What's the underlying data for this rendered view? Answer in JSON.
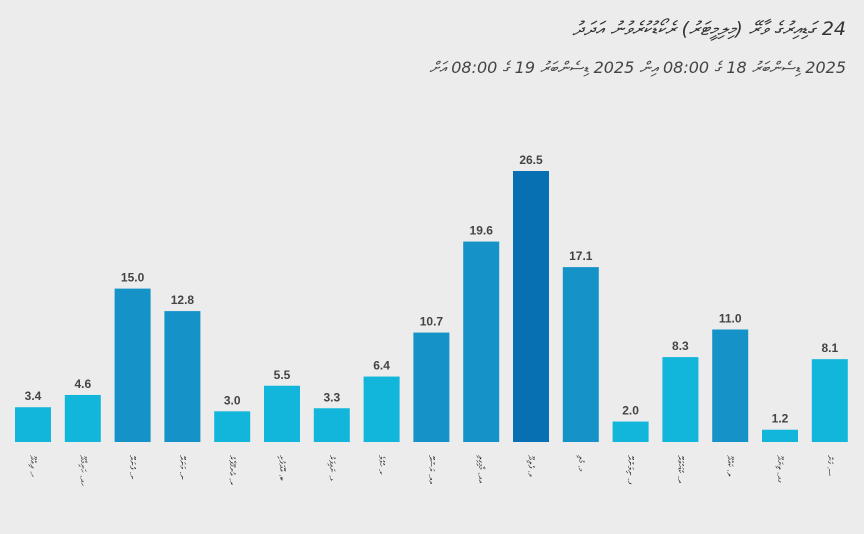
{
  "chart_data": {
    "type": "bar",
    "title": "24 ގަޑިއިރުގެ ވާރޭ (މިލިމީޓަރު) ރެކޯޑުކުރެވުނު އަދަދު",
    "subtitle": "2025 ޑިސެންބަރު 18 ގެ 08:00 އިން 2025 ޑިސެންބަރު 19 ގެ 08:00 އަށް",
    "categories": [
      "ހ. ދިއްދޫ",
      "ހދ. ހަނިމާދޫ",
      "ށ. ފުނަދޫ",
      "ނ. މަނަދޫ",
      "ރ. އުނގޫފާރު",
      "ބ. އޭދަފުށި",
      "ޅ. ނައިފަރު",
      "ކ. ހުޅުލެ",
      "އއ. ރަސްދޫ",
      "އދ. މާމިގިލި",
      "ވ. ފެލިދޫ",
      "މ. މުލި",
      "ފ. ނިލަންދޫ",
      "ދ. ކުޑަހުވަދޫ",
      "ލ. ކައްދޫ",
      "ގދ. ތިނަދޫ",
      "ސ. ގަން"
    ],
    "values": [
      3.4,
      4.6,
      15.0,
      12.8,
      3.0,
      5.5,
      3.3,
      6.4,
      10.7,
      19.6,
      26.5,
      17.1,
      2.0,
      8.3,
      11.0,
      1.2,
      8.1
    ],
    "value_labels": [
      "3.4",
      "4.6",
      "15.0",
      "12.8",
      "3.0",
      "5.5",
      "3.3",
      "6.4",
      "10.7",
      "19.6",
      "26.5",
      "17.1",
      "2.0",
      "8.3",
      "11.0",
      "1.2",
      "8.1"
    ],
    "ylim": [
      0,
      28
    ],
    "xlabel": "",
    "ylabel": "",
    "grid": false,
    "colors": {
      "low": "#12b6da",
      "mid": "#1592c8",
      "high": "#0670b3",
      "label": "#444444"
    }
  }
}
